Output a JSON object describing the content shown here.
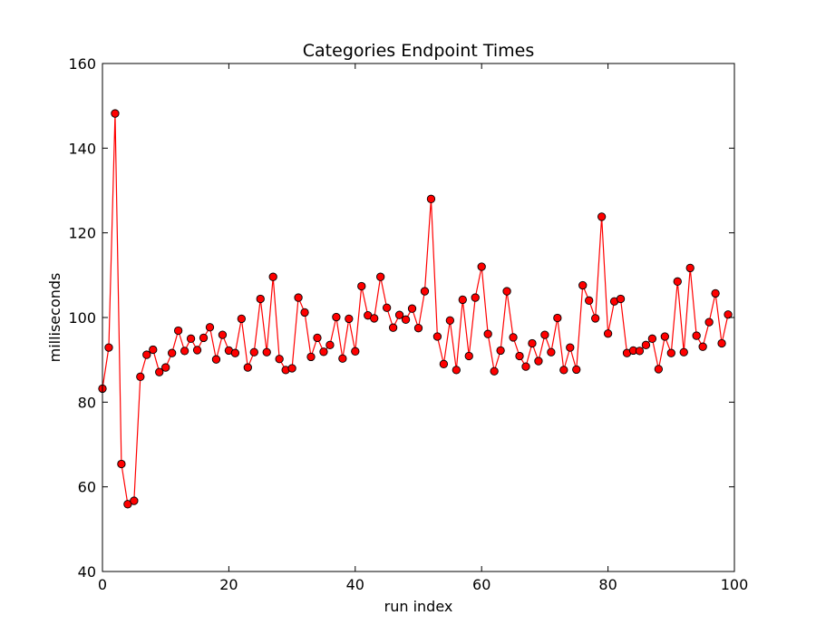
{
  "chart_data": {
    "type": "line",
    "title": "Categories Endpoint Times",
    "xlabel": "run index",
    "ylabel": "milliseconds",
    "xlim": [
      0,
      100
    ],
    "ylim": [
      40,
      160
    ],
    "xticks": [
      0,
      20,
      40,
      60,
      80,
      100
    ],
    "yticks": [
      40,
      60,
      80,
      100,
      120,
      140,
      160
    ],
    "grid": false,
    "series": [
      {
        "name": "Categories Endpoint Times",
        "color": "#ff0000",
        "marker": "circle",
        "x": [
          0,
          1,
          2,
          3,
          4,
          5,
          6,
          7,
          8,
          9,
          10,
          11,
          12,
          13,
          14,
          15,
          16,
          17,
          18,
          19,
          20,
          21,
          22,
          23,
          24,
          25,
          26,
          27,
          28,
          29,
          30,
          31,
          32,
          33,
          34,
          35,
          36,
          37,
          38,
          39,
          40,
          41,
          42,
          43,
          44,
          45,
          46,
          47,
          48,
          49,
          50,
          51,
          52,
          53,
          54,
          55,
          56,
          57,
          58,
          59,
          60,
          61,
          62,
          63,
          64,
          65,
          66,
          67,
          68,
          69,
          70,
          71,
          72,
          73,
          74,
          75,
          76,
          77,
          78,
          79,
          80,
          81,
          82,
          83,
          84,
          85,
          86,
          87,
          88,
          89,
          90,
          91,
          92,
          93,
          94,
          95,
          96,
          97,
          98,
          99
        ],
        "values": [
          83.2,
          92.9,
          148.2,
          65.4,
          55.9,
          56.7,
          86.0,
          91.2,
          92.4,
          87.1,
          88.2,
          91.6,
          96.9,
          92.1,
          95.0,
          92.3,
          95.2,
          97.7,
          90.1,
          95.9,
          92.2,
          91.6,
          99.7,
          88.2,
          91.8,
          104.4,
          91.8,
          109.6,
          90.2,
          87.6,
          88.0,
          104.7,
          101.2,
          90.7,
          95.2,
          91.9,
          93.5,
          100.1,
          90.3,
          99.7,
          92.0,
          107.4,
          100.5,
          99.8,
          109.6,
          102.3,
          97.6,
          100.6,
          99.5,
          102.1,
          97.5,
          106.2,
          128.0,
          95.5,
          89.0,
          99.3,
          87.6,
          104.2,
          90.9,
          104.7,
          112.0,
          96.1,
          87.3,
          92.2,
          106.2,
          95.3,
          90.9,
          88.4,
          93.9,
          89.7,
          95.9,
          91.8,
          99.9,
          87.6,
          92.9,
          87.7,
          107.6,
          104.0,
          99.8,
          123.8,
          96.2,
          103.8,
          104.4,
          91.6,
          92.2,
          92.1,
          93.5,
          95.0,
          87.8,
          95.5,
          91.6,
          108.5,
          91.8,
          111.7,
          95.7,
          93.1,
          98.9,
          105.7,
          93.9,
          100.7
        ]
      }
    ]
  }
}
